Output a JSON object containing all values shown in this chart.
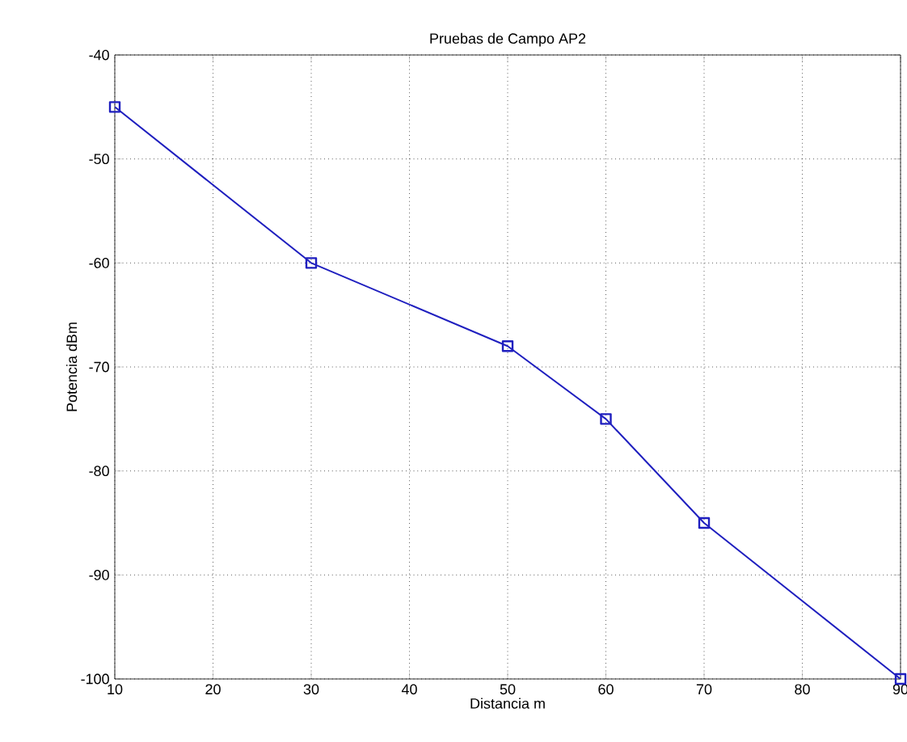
{
  "chart_data": {
    "type": "line",
    "title": "Pruebas de Campo AP2",
    "xlabel": "Distancia m",
    "ylabel": "Potencia dBm",
    "x": [
      10,
      30,
      50,
      60,
      70,
      90
    ],
    "series": [
      {
        "color": "#1f1fbf",
        "values": [
          -45,
          -60,
          -68,
          -75,
          -85,
          -100
        ]
      }
    ],
    "xlim": [
      10,
      90
    ],
    "xticks": [
      10,
      20,
      30,
      40,
      50,
      60,
      70,
      80,
      90
    ],
    "ylim": [
      -100,
      -40
    ],
    "yticks": [
      -100,
      -90,
      -80,
      -70,
      -60,
      -50,
      -40
    ],
    "grid": true,
    "marker": "square",
    "line_style": "solid"
  }
}
